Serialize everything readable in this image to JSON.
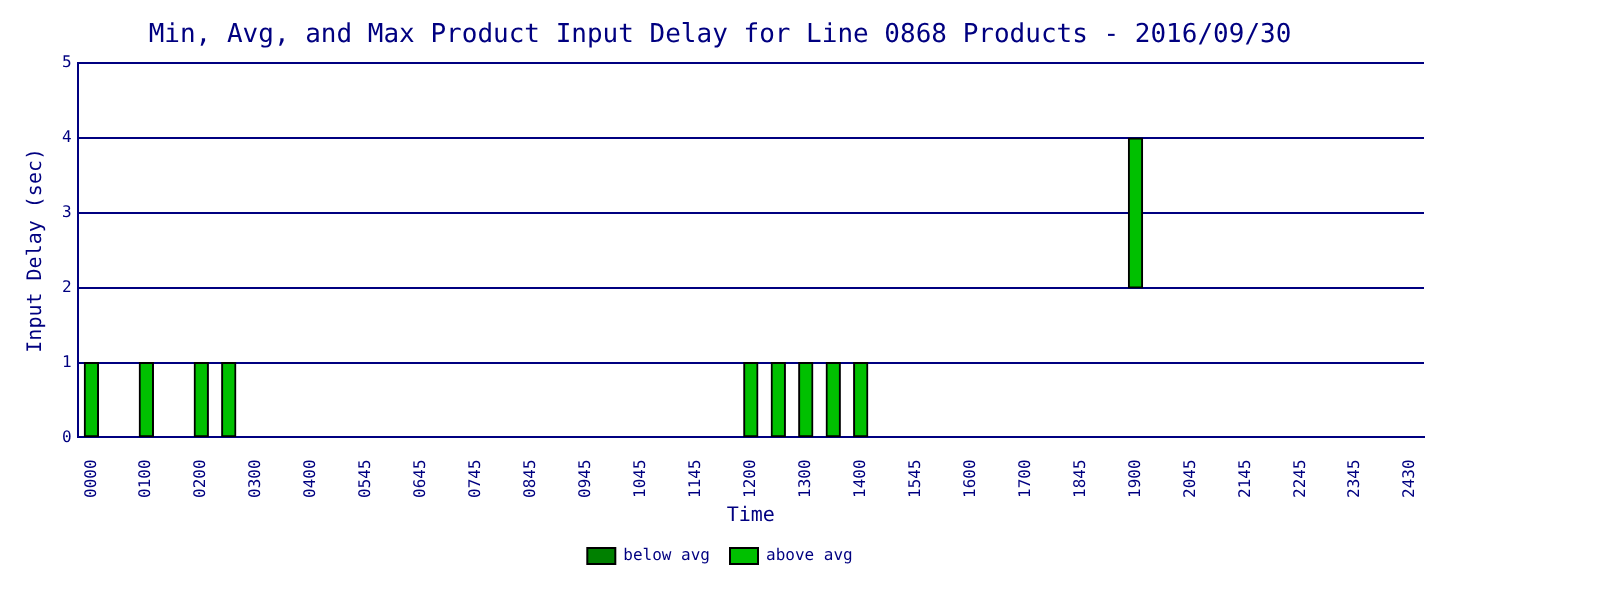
{
  "chart_data": {
    "type": "bar",
    "title": "Min, Avg, and Max Product Input Delay for Line 0868 Products - 2016/09/30",
    "xlabel": "Time",
    "ylabel": "Input Delay (sec)",
    "categories": [
      "0000",
      null,
      "0100",
      null,
      "0200",
      null,
      "0300",
      null,
      "0400",
      null,
      "0545",
      null,
      "0645",
      null,
      "0745",
      null,
      "0845",
      null,
      "0945",
      null,
      "1045",
      null,
      "1145",
      null,
      "1200",
      null,
      "1300",
      null,
      "1400",
      null,
      "1545",
      null,
      "1600",
      null,
      "1700",
      null,
      "1845",
      null,
      "1900",
      null,
      "2045",
      null,
      "2145",
      null,
      "2245",
      null,
      "2345",
      null,
      "2430"
    ],
    "series": [
      {
        "name": "below avg",
        "color": "#008000",
        "values": [
          null,
          null,
          null,
          null,
          null,
          null,
          null,
          null,
          null,
          null,
          null,
          null,
          null,
          null,
          null,
          null,
          null,
          null,
          null,
          null,
          null,
          null,
          null,
          null,
          null,
          null,
          null,
          null,
          null,
          null,
          null,
          null,
          null,
          null,
          null,
          null,
          null,
          null,
          null,
          null,
          null,
          null,
          null,
          null,
          null,
          null,
          null,
          null,
          null
        ]
      },
      {
        "name": "above avg",
        "color": "#00c000",
        "base": [
          0,
          null,
          0,
          null,
          0,
          0,
          null,
          null,
          null,
          null,
          null,
          null,
          null,
          null,
          null,
          null,
          null,
          null,
          null,
          null,
          null,
          null,
          null,
          null,
          0,
          0,
          0,
          0,
          0,
          null,
          null,
          null,
          null,
          null,
          null,
          null,
          null,
          null,
          2,
          null,
          null,
          null,
          null,
          null,
          null,
          null,
          null,
          null,
          null
        ],
        "values": [
          1,
          null,
          1,
          null,
          1,
          1,
          null,
          null,
          null,
          null,
          null,
          null,
          null,
          null,
          null,
          null,
          null,
          null,
          null,
          null,
          null,
          null,
          null,
          null,
          1,
          1,
          1,
          1,
          1,
          null,
          null,
          null,
          null,
          null,
          null,
          null,
          null,
          null,
          2,
          null,
          null,
          null,
          null,
          null,
          null,
          null,
          null,
          null,
          null
        ]
      }
    ],
    "ylim": [
      0,
      5
    ],
    "yticks": [
      0,
      1,
      2,
      3,
      4,
      5
    ],
    "grid": "y",
    "legend": "bottom"
  }
}
